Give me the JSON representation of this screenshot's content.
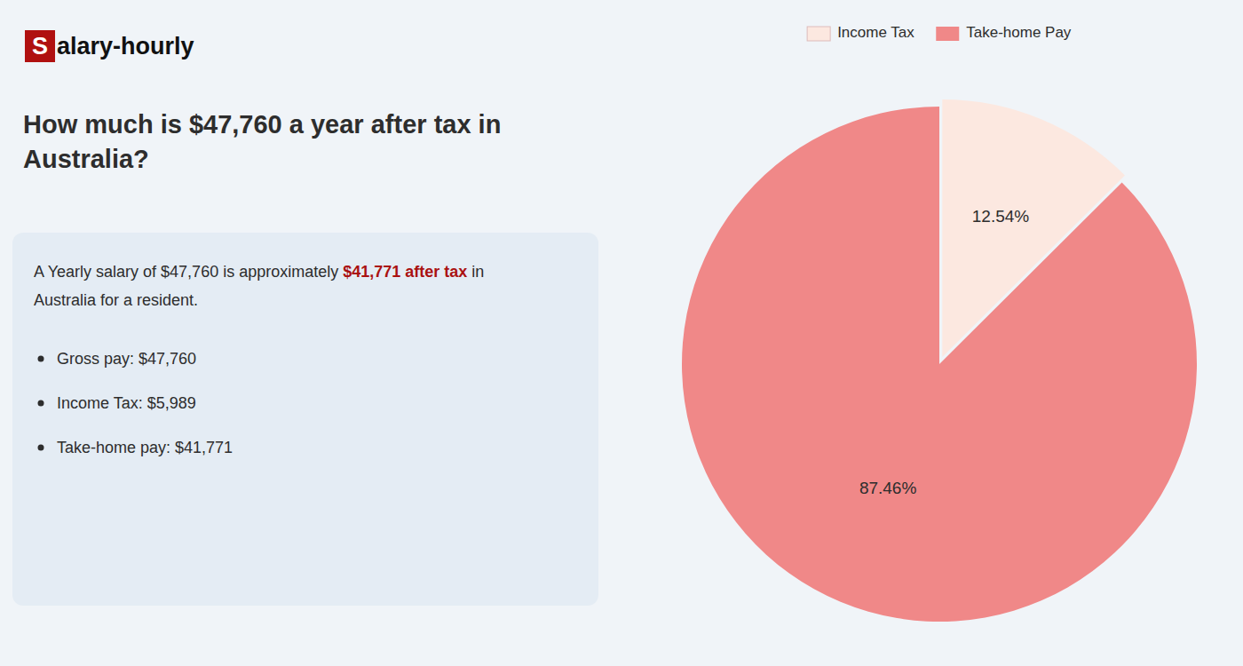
{
  "chart_data": {
    "type": "pie",
    "title": "How much is $47,760 a year after tax in\nAustralia?",
    "categories": [
      "Income Tax",
      "Take-home Pay"
    ],
    "values": [
      12.54,
      87.46
    ],
    "value_labels": [
      "12.54%",
      "87.46%"
    ],
    "colors": [
      "#fce8e0",
      "#f08888"
    ],
    "data_labels": true,
    "legend": "top",
    "annotations": [
      [
        "S",
        "alary-hourly"
      ],
      [
        "A Yearly salary of $47,760 is approximately ",
        "$41,771 after tax",
        " in"
      ],
      [
        "Australia for a resident."
      ],
      [
        "Gross pay: $47,760"
      ],
      [
        "Income Tax: $5,989"
      ],
      [
        "Take-home pay: $41,771"
      ]
    ]
  }
}
